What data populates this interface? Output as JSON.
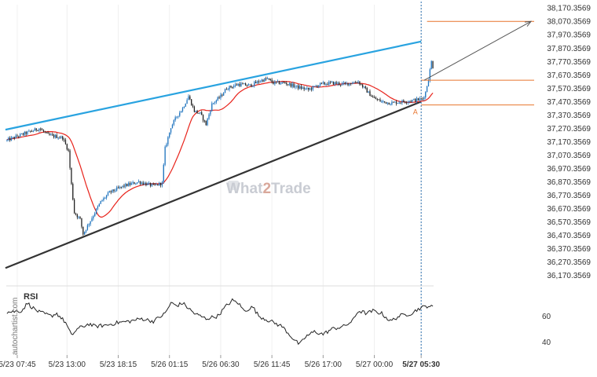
{
  "colors": {
    "bull": "#1e73be",
    "bear": "#222222",
    "ma": "#e8231b",
    "upper_channel": "#29a3e0",
    "lower_channel": "#333333",
    "level_lines": "#e8742c",
    "projection": "#555555",
    "current_time_line": "#2a6fb0",
    "axis_text": "#333333",
    "rsi_line": "#222222",
    "watermark": "#c9ccd3",
    "marker": "#e8742c"
  },
  "watermark": {
    "text_a": "What",
    "text_b": "2",
    "text_c": "Trade"
  },
  "side_credit": "autochartist.com",
  "rsi_label": "RSI",
  "marker_label": "A",
  "chart_data": [
    {
      "type": "candlestick",
      "y_ticks": [
        "38,170.3569",
        "38,070.3569",
        "37,970.3569",
        "37,870.3569",
        "37,770.3569",
        "37,670.3569",
        "37,570.3569",
        "37,470.3569",
        "37,370.3569",
        "37,270.3569",
        "37,170.3569",
        "37,070.3569",
        "36,970.3569",
        "36,870.3569",
        "36,770.3569",
        "36,670.3569",
        "36,570.3569",
        "36,470.3569",
        "36,370.3569",
        "36,270.3569",
        "36,170.3569"
      ],
      "y_tick_values": [
        38170.3569,
        38070.3569,
        37970.3569,
        37870.3569,
        37770.3569,
        37670.3569,
        37570.3569,
        37470.3569,
        37370.3569,
        37270.3569,
        37170.3569,
        37070.3569,
        36970.3569,
        36870.3569,
        36770.3569,
        36670.3569,
        36570.3569,
        36470.3569,
        36370.3569,
        36270.3569,
        36170.3569
      ],
      "ylim": [
        36115,
        38195
      ],
      "x_ticks": [
        "5/23 07:45",
        "5/23 13:00",
        "5/23 18:15",
        "5/26 01:15",
        "5/26 06:30",
        "5/26 11:45",
        "5/26 17:00",
        "5/27 00:00",
        "5/27 05:30"
      ],
      "x_tick_index": [
        7,
        41,
        76,
        111,
        146,
        181,
        216,
        251,
        283
      ],
      "bar_count": 292,
      "price_path": [
        [
          0,
          37180
        ],
        [
          8,
          37215
        ],
        [
          22,
          37270
        ],
        [
          28,
          37220
        ],
        [
          38,
          37200
        ],
        [
          42,
          37100
        ],
        [
          44,
          36850
        ],
        [
          46,
          36640
        ],
        [
          50,
          36590
        ],
        [
          52,
          36480
        ],
        [
          56,
          36560
        ],
        [
          64,
          36720
        ],
        [
          70,
          36790
        ],
        [
          80,
          36840
        ],
        [
          90,
          36870
        ],
        [
          100,
          36840
        ],
        [
          106,
          36860
        ],
        [
          108,
          37120
        ],
        [
          112,
          37280
        ],
        [
          116,
          37360
        ],
        [
          120,
          37420
        ],
        [
          124,
          37510
        ],
        [
          128,
          37400
        ],
        [
          132,
          37380
        ],
        [
          136,
          37300
        ],
        [
          140,
          37450
        ],
        [
          146,
          37510
        ],
        [
          150,
          37570
        ],
        [
          158,
          37600
        ],
        [
          166,
          37590
        ],
        [
          174,
          37630
        ],
        [
          178,
          37640
        ],
        [
          182,
          37610
        ],
        [
          190,
          37610
        ],
        [
          198,
          37580
        ],
        [
          206,
          37560
        ],
        [
          214,
          37600
        ],
        [
          222,
          37610
        ],
        [
          230,
          37600
        ],
        [
          240,
          37620
        ],
        [
          250,
          37500
        ],
        [
          256,
          37470
        ],
        [
          262,
          37460
        ],
        [
          270,
          37470
        ],
        [
          278,
          37480
        ],
        [
          284,
          37490
        ],
        [
          286,
          37540
        ],
        [
          288,
          37640
        ],
        [
          290,
          37770
        ],
        [
          291,
          37730
        ]
      ],
      "ma_period": 20,
      "upper_channel": {
        "start": [
          0,
          37260
        ],
        "end": [
          283,
          37920
        ]
      },
      "lower_channel": {
        "start": [
          0,
          36225
        ],
        "end": [
          283,
          37470
        ]
      },
      "levels": [
        {
          "value": 38070,
          "from": 287
        },
        {
          "value": 37630,
          "from": 283
        },
        {
          "value": 37445,
          "from": 283
        }
      ],
      "projection": {
        "from": [
          285,
          37630
        ],
        "to": [
          345,
          38070
        ]
      },
      "current_time_index": 283,
      "marker_index": 279
    },
    {
      "type": "line",
      "series": [
        {
          "name": "RSI"
        }
      ],
      "y_ticks": [
        "60",
        "40"
      ],
      "y_tick_values": [
        60,
        40
      ],
      "ylim": [
        30,
        82
      ],
      "rsi_path": [
        [
          0,
          63
        ],
        [
          10,
          64
        ],
        [
          14,
          70
        ],
        [
          18,
          66
        ],
        [
          22,
          63
        ],
        [
          30,
          60
        ],
        [
          34,
          62
        ],
        [
          40,
          55
        ],
        [
          44,
          45
        ],
        [
          48,
          50
        ],
        [
          56,
          54
        ],
        [
          60,
          52
        ],
        [
          68,
          53
        ],
        [
          76,
          55
        ],
        [
          84,
          56
        ],
        [
          92,
          58
        ],
        [
          100,
          56
        ],
        [
          108,
          62
        ],
        [
          112,
          70
        ],
        [
          116,
          68
        ],
        [
          120,
          70
        ],
        [
          124,
          66
        ],
        [
          128,
          62
        ],
        [
          136,
          58
        ],
        [
          144,
          60
        ],
        [
          150,
          68
        ],
        [
          154,
          72
        ],
        [
          158,
          70
        ],
        [
          162,
          64
        ],
        [
          168,
          67
        ],
        [
          172,
          60
        ],
        [
          180,
          56
        ],
        [
          188,
          52
        ],
        [
          196,
          42
        ],
        [
          200,
          38
        ],
        [
          204,
          44
        ],
        [
          210,
          48
        ],
        [
          216,
          46
        ],
        [
          222,
          50
        ],
        [
          230,
          52
        ],
        [
          236,
          56
        ],
        [
          240,
          64
        ],
        [
          246,
          62
        ],
        [
          250,
          64
        ],
        [
          256,
          62
        ],
        [
          262,
          56
        ],
        [
          268,
          60
        ],
        [
          276,
          62
        ],
        [
          282,
          66
        ],
        [
          285,
          67
        ],
        [
          288,
          68
        ],
        [
          290,
          67
        ]
      ]
    }
  ]
}
